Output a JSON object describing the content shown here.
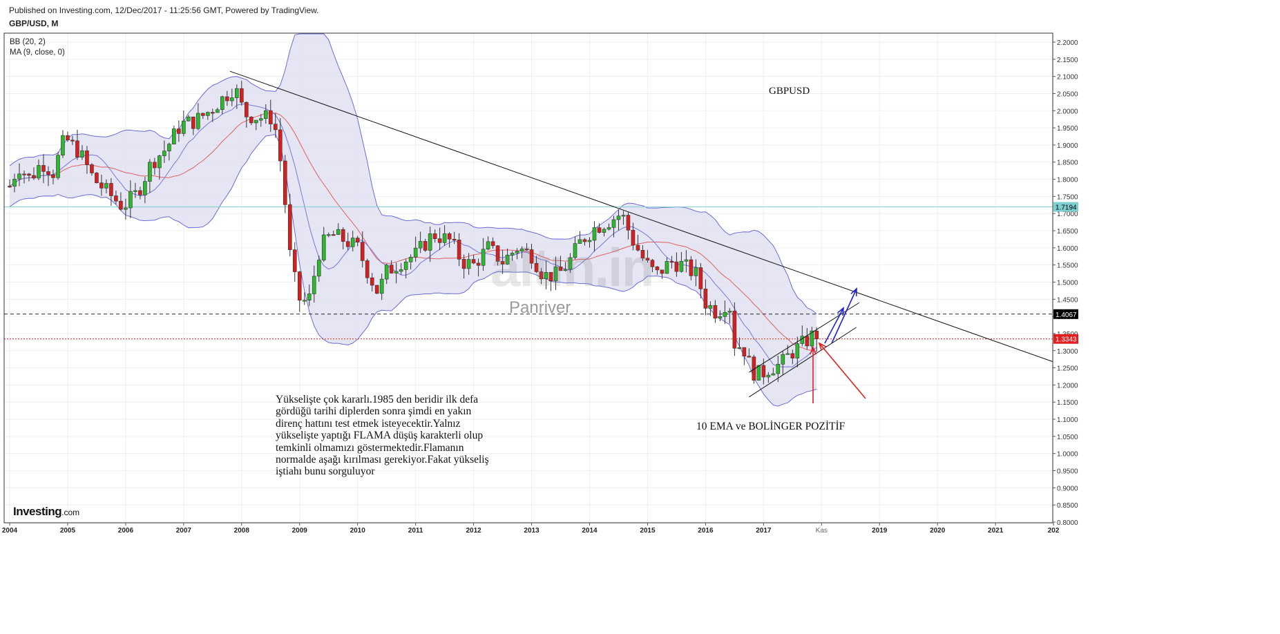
{
  "header": {
    "published": "Published on Investing.com, 12/Dec/2017 - 11:25:56 GMT, Powered by TradingView.",
    "symbol": "GBP/USD, M"
  },
  "indicators": [
    "BB (20, 2)",
    "MA (9, close, 0)"
  ],
  "annotations": {
    "pair": "GBPUSD",
    "main_lines": [
      "Yükselişte çok kararlı.1985 den beridir ilk defa",
      "gördüğü tarihi diplerden sonra şimdi en yakın",
      "direnç hattını test etmek isteyecektir.Yalnız",
      "yükselişte yaptığı FLAMA düşüş karakterli olup",
      "temkinli olmamızı göstermektedir.Flamanın",
      "normalde aşağı kırılması gerekiyor.Fakat yükseliş",
      "iştiahı bunu sorguluyor"
    ],
    "ema_note": "10 EMA ve BOLİNGER POZİTİF"
  },
  "watermark": {
    "logo": "altın.in",
    "name": "Panriver"
  },
  "brand": {
    "bold": "Investing",
    "suffix": ".com"
  },
  "colors": {
    "up": "#2db82d",
    "down": "#d62020",
    "band_fill": "#dcdcf0",
    "band_line": "#6b6bd6",
    "ma_line": "#e06060",
    "cyan_line": "#7ecfcf",
    "red_level": "#e02020",
    "trend": "#111111",
    "arrow_red": "#e02020",
    "arrow_blue": "#2020d0"
  },
  "chart_data": {
    "type": "candlestick",
    "interval": "monthly",
    "y_axis": {
      "min": 0.8,
      "max": 2.2,
      "ticks": [
        "2.2000",
        "2.1500",
        "2.1000",
        "2.0500",
        "2.0000",
        "1.9500",
        "1.9000",
        "1.8500",
        "1.8000",
        "1.7500",
        "1.7000",
        "1.6500",
        "1.6000",
        "1.5500",
        "1.5000",
        "1.4500",
        "1.4000",
        "1.3500",
        "1.3000",
        "1.2500",
        "1.2000",
        "1.1500",
        "1.1000",
        "1.0500",
        "1.0000",
        "0.9500",
        "0.9000",
        "0.8500",
        "0.8000"
      ]
    },
    "x_axis": {
      "ticks": [
        "2004",
        "2005",
        "2006",
        "2007",
        "2008",
        "2009",
        "2010",
        "2011",
        "2012",
        "2013",
        "2014",
        "2015",
        "2016",
        "2017",
        "Kas",
        "2019",
        "2020",
        "2021",
        "202"
      ]
    },
    "price_labels": [
      {
        "value": "1.7194",
        "style": "cyan"
      },
      {
        "value": "1.4067",
        "style": "black"
      },
      {
        "value": "1.3343",
        "style": "red"
      }
    ],
    "levels": {
      "cyan": 1.7194,
      "dashed_black": 1.4067,
      "dotted_red": 1.3343
    },
    "price_path": [
      {
        "t": 2004.0,
        "c": 1.78
      },
      {
        "t": 2004.15,
        "c": 1.84
      },
      {
        "t": 2004.35,
        "c": 1.8
      },
      {
        "t": 2004.55,
        "c": 1.85
      },
      {
        "t": 2004.75,
        "c": 1.82
      },
      {
        "t": 2004.95,
        "c": 1.92
      },
      {
        "t": 2005.2,
        "c": 1.88
      },
      {
        "t": 2005.45,
        "c": 1.8
      },
      {
        "t": 2005.7,
        "c": 1.76
      },
      {
        "t": 2005.95,
        "c": 1.72
      },
      {
        "t": 2006.2,
        "c": 1.76
      },
      {
        "t": 2006.45,
        "c": 1.85
      },
      {
        "t": 2006.7,
        "c": 1.89
      },
      {
        "t": 2006.95,
        "c": 1.96
      },
      {
        "t": 2007.2,
        "c": 1.97
      },
      {
        "t": 2007.45,
        "c": 2.0
      },
      {
        "t": 2007.7,
        "c": 2.04
      },
      {
        "t": 2007.88,
        "c": 2.07
      },
      {
        "t": 2008.05,
        "c": 1.99
      },
      {
        "t": 2008.3,
        "c": 1.98
      },
      {
        "t": 2008.55,
        "c": 1.98
      },
      {
        "t": 2008.7,
        "c": 1.82
      },
      {
        "t": 2008.85,
        "c": 1.55
      },
      {
        "t": 2009.0,
        "c": 1.45
      },
      {
        "t": 2009.15,
        "c": 1.44
      },
      {
        "t": 2009.35,
        "c": 1.6
      },
      {
        "t": 2009.55,
        "c": 1.64
      },
      {
        "t": 2009.8,
        "c": 1.62
      },
      {
        "t": 2010.0,
        "c": 1.6
      },
      {
        "t": 2010.2,
        "c": 1.52
      },
      {
        "t": 2010.35,
        "c": 1.47
      },
      {
        "t": 2010.5,
        "c": 1.53
      },
      {
        "t": 2010.75,
        "c": 1.56
      },
      {
        "t": 2011.0,
        "c": 1.58
      },
      {
        "t": 2011.3,
        "c": 1.64
      },
      {
        "t": 2011.6,
        "c": 1.62
      },
      {
        "t": 2011.8,
        "c": 1.56
      },
      {
        "t": 2012.0,
        "c": 1.55
      },
      {
        "t": 2012.25,
        "c": 1.6
      },
      {
        "t": 2012.5,
        "c": 1.56
      },
      {
        "t": 2012.75,
        "c": 1.6
      },
      {
        "t": 2013.0,
        "c": 1.58
      },
      {
        "t": 2013.2,
        "c": 1.52
      },
      {
        "t": 2013.45,
        "c": 1.52
      },
      {
        "t": 2013.65,
        "c": 1.56
      },
      {
        "t": 2013.85,
        "c": 1.62
      },
      {
        "t": 2014.1,
        "c": 1.66
      },
      {
        "t": 2014.35,
        "c": 1.68
      },
      {
        "t": 2014.55,
        "c": 1.7
      },
      {
        "t": 2014.75,
        "c": 1.62
      },
      {
        "t": 2014.95,
        "c": 1.56
      },
      {
        "t": 2015.15,
        "c": 1.52
      },
      {
        "t": 2015.4,
        "c": 1.56
      },
      {
        "t": 2015.6,
        "c": 1.55
      },
      {
        "t": 2015.85,
        "c": 1.52
      },
      {
        "t": 2016.0,
        "c": 1.44
      },
      {
        "t": 2016.2,
        "c": 1.41
      },
      {
        "t": 2016.4,
        "c": 1.45
      },
      {
        "t": 2016.5,
        "c": 1.32
      },
      {
        "t": 2016.65,
        "c": 1.31
      },
      {
        "t": 2016.8,
        "c": 1.24
      },
      {
        "t": 2016.95,
        "c": 1.23
      },
      {
        "t": 2017.1,
        "c": 1.25
      },
      {
        "t": 2017.3,
        "c": 1.26
      },
      {
        "t": 2017.45,
        "c": 1.29
      },
      {
        "t": 2017.6,
        "c": 1.31
      },
      {
        "t": 2017.75,
        "c": 1.33
      },
      {
        "t": 2017.88,
        "c": 1.35
      },
      {
        "t": 2017.95,
        "c": 1.3343
      }
    ]
  }
}
